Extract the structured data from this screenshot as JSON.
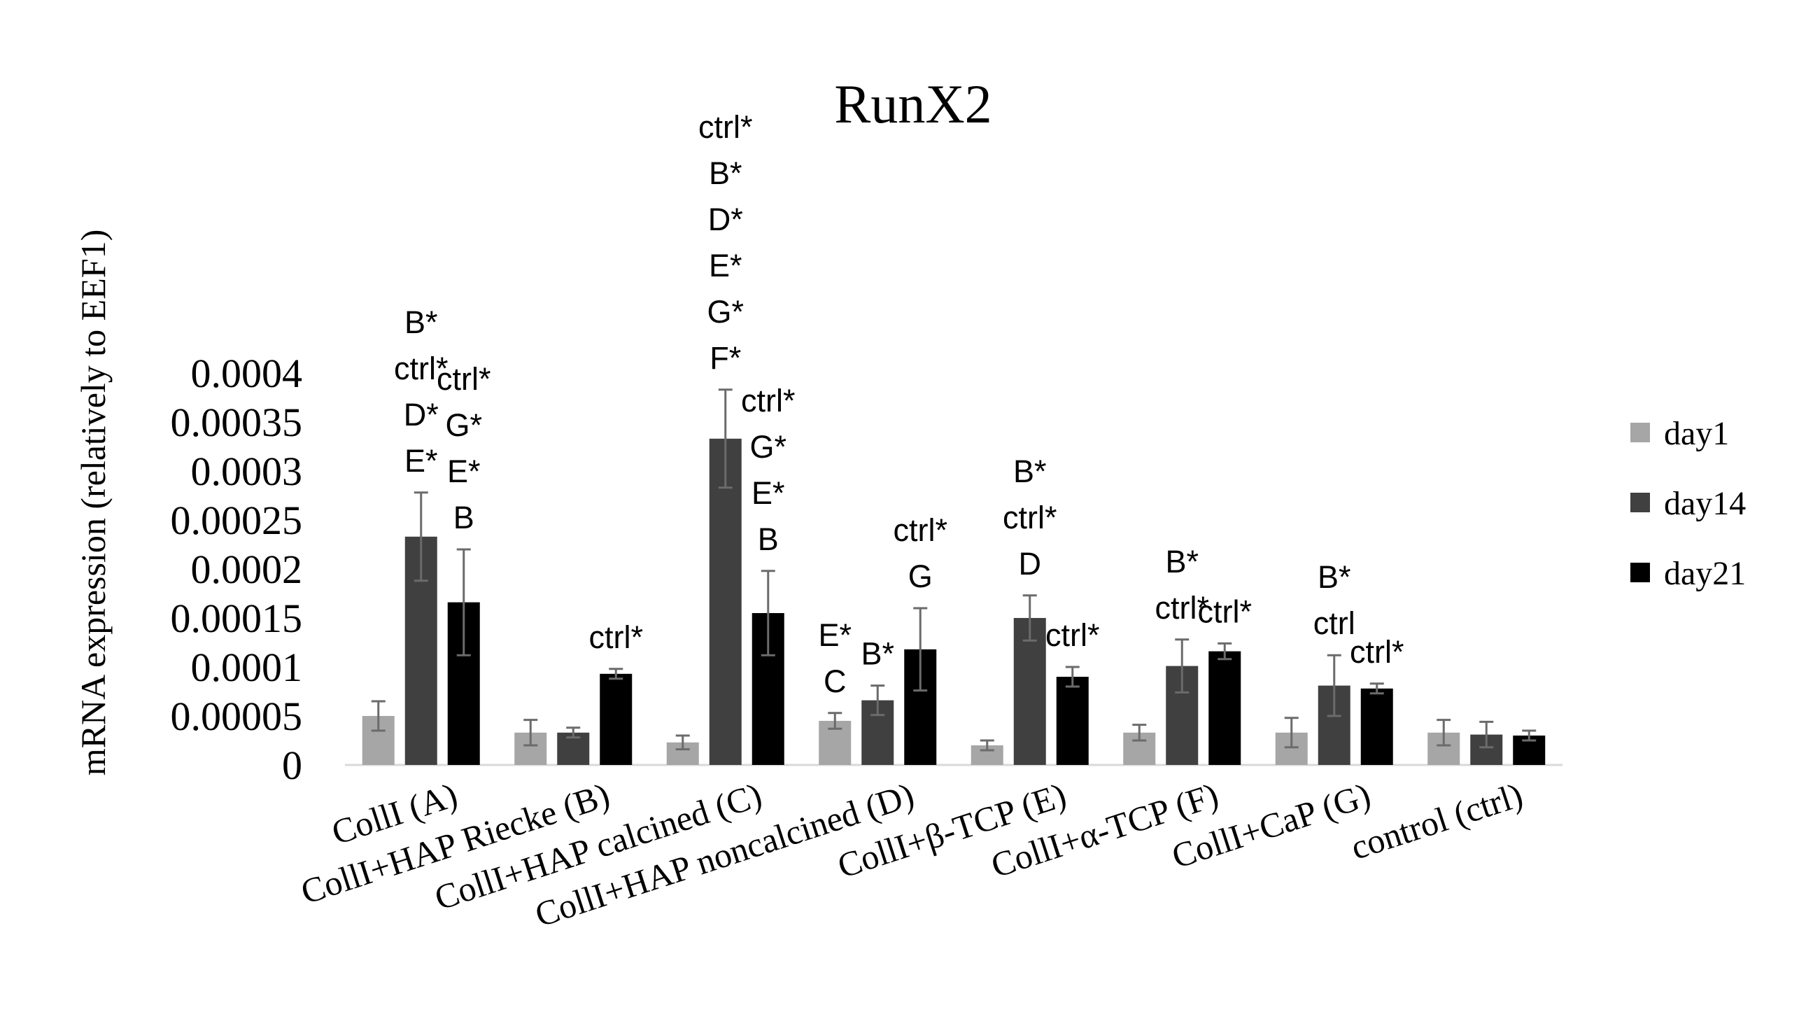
{
  "chart_data": {
    "type": "bar",
    "title": "RunX2",
    "xlabel": "",
    "ylabel": "mRNA expression (relatively to EEF1)",
    "ylim": [
      0,
      0.0004
    ],
    "grid": false,
    "legend_position": "right",
    "yticks": [
      "0",
      "0.00005",
      "0.0001",
      "0.00015",
      "0.0002",
      "0.00025",
      "0.0003",
      "0.00035",
      "0.0004"
    ],
    "categories": [
      "CollI (A)",
      "CollI+HAP Riecke (B)",
      "CollI+HAP calcined (C)",
      "CollI+HAP noncalcined (D)",
      "CollI+β-TCP (E)",
      "CollI+α-TCP (F)",
      "CollI+CaP (G)",
      "control (ctrl)"
    ],
    "series": [
      {
        "name": "day1",
        "color": "#a6a6a6",
        "values": [
          5e-05,
          3.3e-05,
          2.3e-05,
          4.5e-05,
          2e-05,
          3.3e-05,
          3.3e-05,
          3.3e-05
        ],
        "errors": [
          1.5e-05,
          1.3e-05,
          7e-06,
          8e-06,
          5e-06,
          8e-06,
          1.5e-05,
          1.3e-05
        ]
      },
      {
        "name": "day14",
        "color": "#404040",
        "values": [
          0.000233,
          3.3e-05,
          0.000333,
          6.6e-05,
          0.00015,
          0.000101,
          8.1e-05,
          3.1e-05
        ],
        "errors": [
          4.5e-05,
          5e-06,
          5e-05,
          1.5e-05,
          2.3e-05,
          2.7e-05,
          3.1e-05,
          1.3e-05
        ]
      },
      {
        "name": "day21",
        "color": "#000000",
        "values": [
          0.000166,
          9.3e-05,
          0.000155,
          0.000118,
          9e-05,
          0.000116,
          7.8e-05,
          3e-05
        ],
        "errors": [
          5.4e-05,
          5e-06,
          4.3e-05,
          4.2e-05,
          1e-05,
          8e-06,
          5e-06,
          5e-06
        ]
      }
    ],
    "annotations": [
      {
        "category": 0,
        "series": 1,
        "lines": [
          "B*",
          "ctrl*",
          "D*",
          "E*"
        ]
      },
      {
        "category": 0,
        "series": 2,
        "lines": [
          "ctrl*",
          "G*",
          "E*",
          "B"
        ]
      },
      {
        "category": 1,
        "series": 2,
        "lines": [
          "ctrl*"
        ]
      },
      {
        "category": 2,
        "series": 1,
        "lines": [
          "ctrl*",
          "B*",
          "D*",
          "E*",
          "G*",
          "F*"
        ]
      },
      {
        "category": 2,
        "series": 2,
        "lines": [
          "ctrl*",
          "G*",
          "E*",
          "B"
        ]
      },
      {
        "category": 3,
        "series": 0,
        "lines": [
          "E*",
          "C"
        ]
      },
      {
        "category": 3,
        "series": 1,
        "lines": [
          "B*"
        ]
      },
      {
        "category": 3,
        "series": 2,
        "lines": [
          "ctrl*",
          "G"
        ]
      },
      {
        "category": 4,
        "series": 1,
        "lines": [
          "B*",
          "ctrl*",
          "D"
        ]
      },
      {
        "category": 4,
        "series": 2,
        "lines": [
          "ctrl*"
        ]
      },
      {
        "category": 5,
        "series": 1,
        "lines": [
          "B*",
          "ctrl*"
        ]
      },
      {
        "category": 5,
        "series": 2,
        "lines": [
          "ctrl*"
        ]
      },
      {
        "category": 6,
        "series": 1,
        "lines": [
          "B*",
          "ctrl"
        ]
      },
      {
        "category": 6,
        "series": 2,
        "lines": [
          "ctrl*"
        ]
      }
    ]
  }
}
